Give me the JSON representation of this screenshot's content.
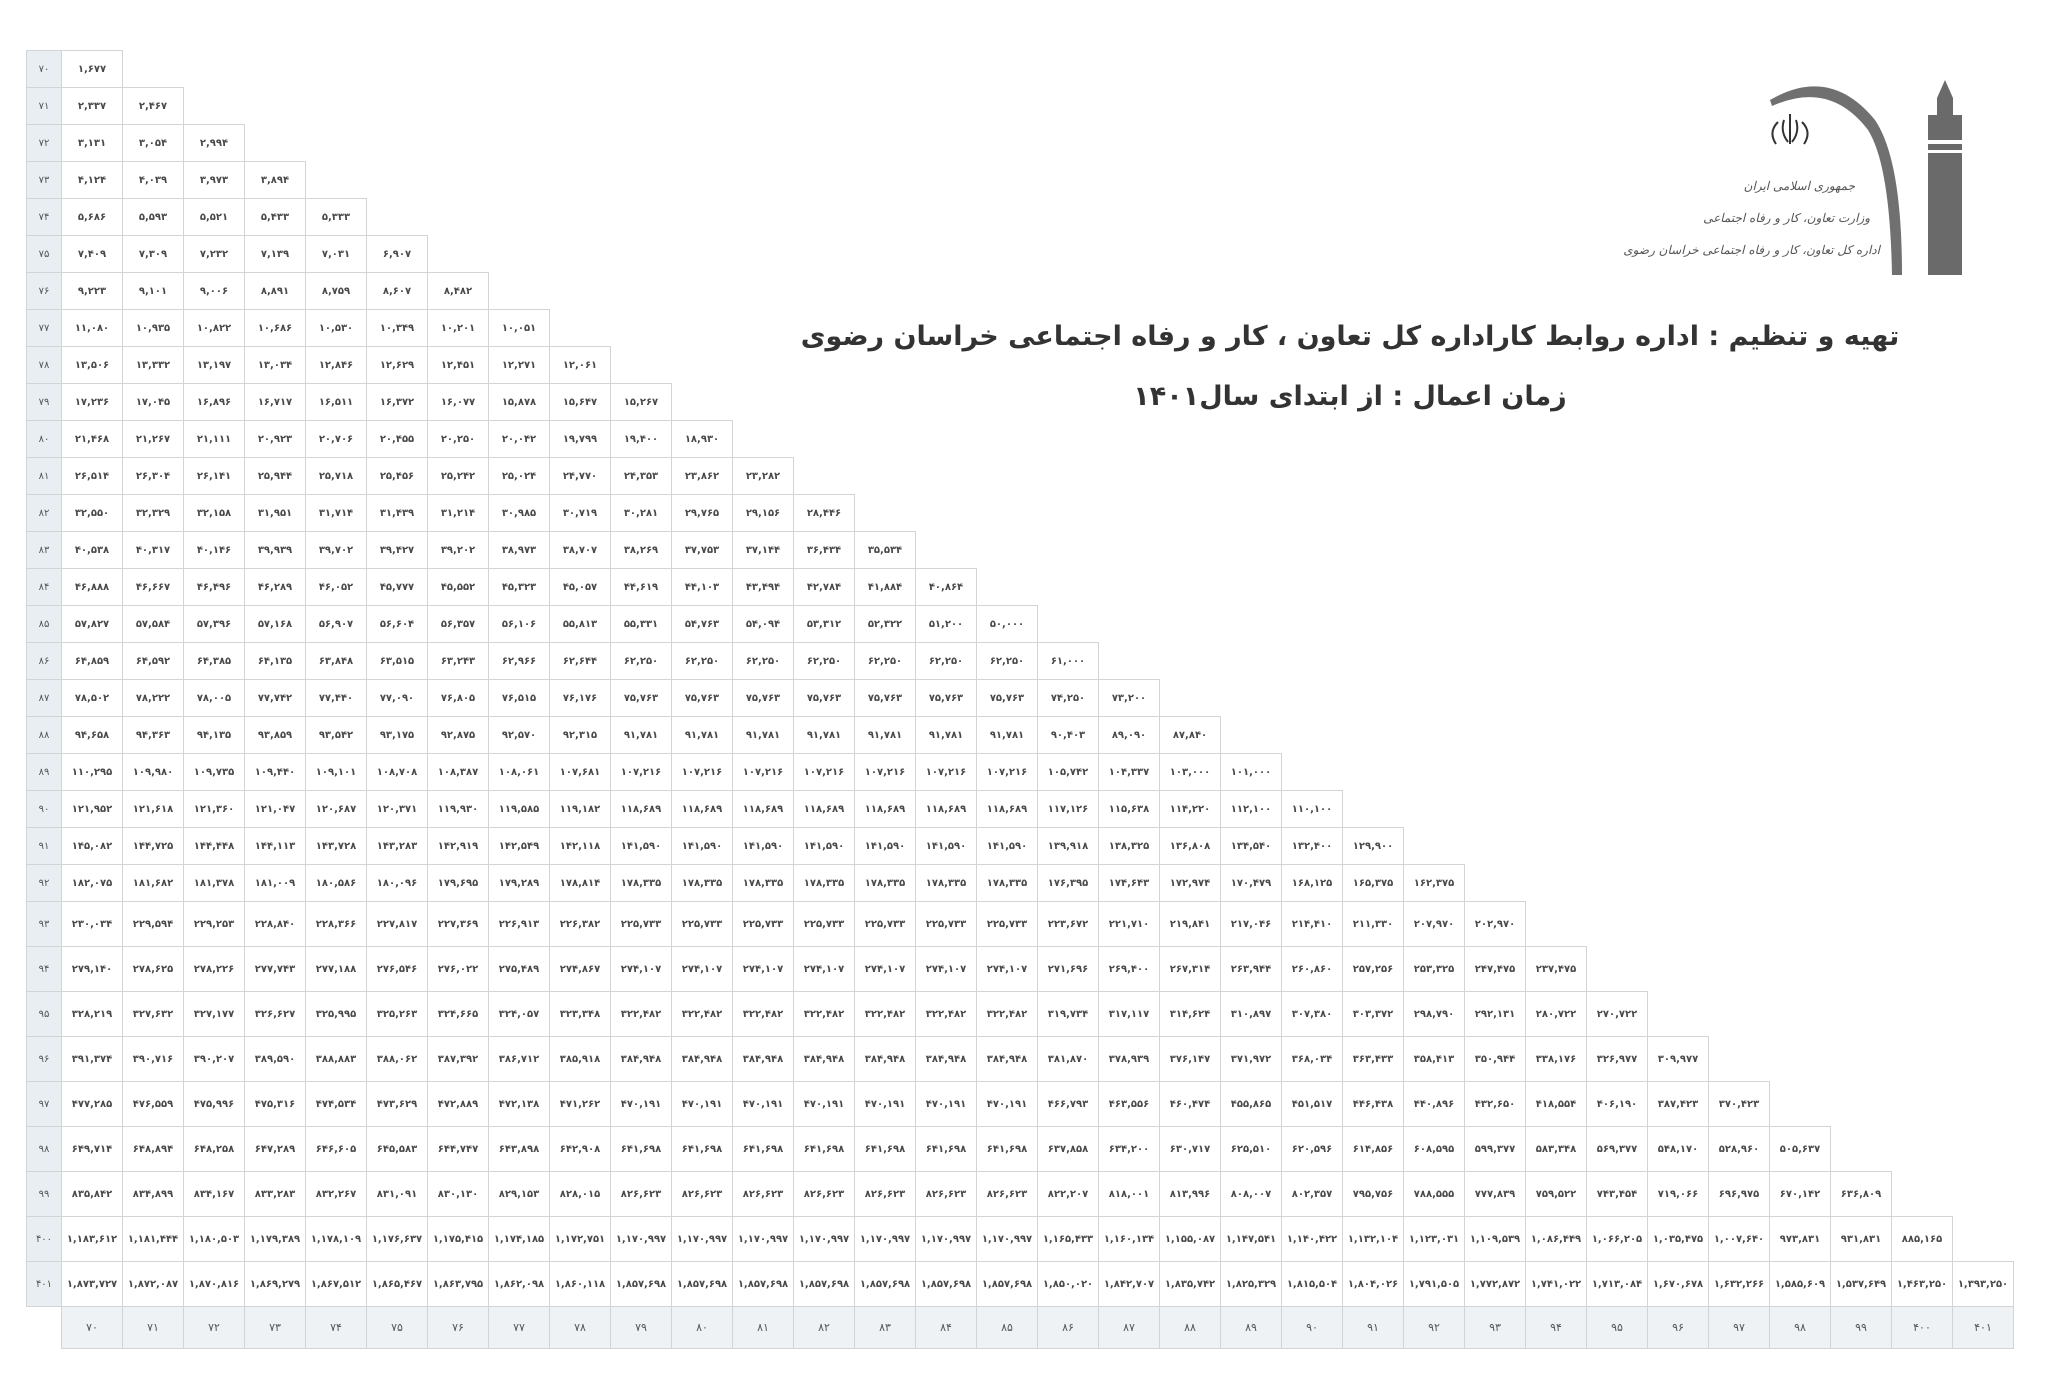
{
  "header": {
    "logo_lines": [
      "جمهوری اسلامی ایران",
      "وزارت تعاون، کار و رفاه اجتماعی",
      "اداره کل تعاون، کار و رفاه اجتماعی خراسان رضوی"
    ],
    "title": "تهیه و تنظیم : اداره روابط کاراداره  کل تعاون ، کار و رفاه اجتماعی  خراسان رضوی",
    "subtitle": "زمان اعمال : از ابتدای سال۱۴۰۱"
  },
  "table": {
    "columns": [
      "۷۰",
      "۷۱",
      "۷۲",
      "۷۳",
      "۷۴",
      "۷۵",
      "۷۶",
      "۷۷",
      "۷۸",
      "۷۹",
      "۸۰",
      "۸۱",
      "۸۲",
      "۸۳",
      "۸۴",
      "۸۵",
      "۸۶",
      "۸۷",
      "۸۸",
      "۸۹",
      "۹۰",
      "۹۱",
      "۹۲",
      "۹۳",
      "۹۴",
      "۹۵",
      "۹۶",
      "۹۷",
      "۹۸",
      "۹۹",
      "۴۰۰",
      "۴۰۱"
    ],
    "rows": [
      {
        "label": "۷۰",
        "values": [
          "۱,۶۷۷"
        ]
      },
      {
        "label": "۷۱",
        "values": [
          "۲,۳۳۷",
          "۲,۴۶۷"
        ]
      },
      {
        "label": "۷۲",
        "values": [
          "۳,۱۳۱",
          "۳,۰۵۴",
          "۲,۹۹۴"
        ]
      },
      {
        "label": "۷۳",
        "values": [
          "۴,۱۲۴",
          "۴,۰۳۹",
          "۳,۹۷۳",
          "۳,۸۹۴"
        ]
      },
      {
        "label": "۷۴",
        "values": [
          "۵,۶۸۶",
          "۵,۵۹۳",
          "۵,۵۲۱",
          "۵,۴۳۳",
          "۵,۳۳۳"
        ]
      },
      {
        "label": "۷۵",
        "values": [
          "۷,۴۰۹",
          "۷,۳۰۹",
          "۷,۲۳۲",
          "۷,۱۳۹",
          "۷,۰۳۱",
          "۶,۹۰۷"
        ]
      },
      {
        "label": "۷۶",
        "values": [
          "۹,۲۲۳",
          "۹,۱۰۱",
          "۹,۰۰۶",
          "۸,۸۹۱",
          "۸,۷۵۹",
          "۸,۶۰۷",
          "۸,۴۸۲"
        ]
      },
      {
        "label": "۷۷",
        "values": [
          "۱۱,۰۸۰",
          "۱۰,۹۳۵",
          "۱۰,۸۲۲",
          "۱۰,۶۸۶",
          "۱۰,۵۳۰",
          "۱۰,۳۴۹",
          "۱۰,۲۰۱",
          "۱۰,۰۵۱"
        ]
      },
      {
        "label": "۷۸",
        "values": [
          "۱۳,۵۰۶",
          "۱۳,۳۳۲",
          "۱۳,۱۹۷",
          "۱۳,۰۳۴",
          "۱۲,۸۴۶",
          "۱۲,۶۲۹",
          "۱۲,۴۵۱",
          "۱۲,۲۷۱",
          "۱۲,۰۶۱"
        ]
      },
      {
        "label": "۷۹",
        "values": [
          "۱۷,۲۳۶",
          "۱۷,۰۴۵",
          "۱۶,۸۹۶",
          "۱۶,۷۱۷",
          "۱۶,۵۱۱",
          "۱۶,۳۷۲",
          "۱۶,۰۷۷",
          "۱۵,۸۷۸",
          "۱۵,۶۴۷",
          "۱۵,۲۶۷"
        ]
      },
      {
        "label": "۸۰",
        "values": [
          "۲۱,۴۶۸",
          "۲۱,۲۶۷",
          "۲۱,۱۱۱",
          "۲۰,۹۲۳",
          "۲۰,۷۰۶",
          "۲۰,۴۵۵",
          "۲۰,۲۵۰",
          "۲۰,۰۴۲",
          "۱۹,۷۹۹",
          "۱۹,۴۰۰",
          "۱۸,۹۳۰"
        ]
      },
      {
        "label": "۸۱",
        "values": [
          "۲۶,۵۱۴",
          "۲۶,۳۰۴",
          "۲۶,۱۴۱",
          "۲۵,۹۴۴",
          "۲۵,۷۱۸",
          "۲۵,۴۵۶",
          "۲۵,۲۴۲",
          "۲۵,۰۲۴",
          "۲۴,۷۷۰",
          "۲۴,۳۵۳",
          "۲۳,۸۶۲",
          "۲۳,۲۸۲"
        ]
      },
      {
        "label": "۸۲",
        "values": [
          "۳۲,۵۵۰",
          "۳۲,۳۲۹",
          "۳۲,۱۵۸",
          "۳۱,۹۵۱",
          "۳۱,۷۱۴",
          "۳۱,۴۳۹",
          "۳۱,۲۱۴",
          "۳۰,۹۸۵",
          "۳۰,۷۱۹",
          "۳۰,۲۸۱",
          "۲۹,۷۶۵",
          "۲۹,۱۵۶",
          "۲۸,۴۴۶"
        ]
      },
      {
        "label": "۸۳",
        "values": [
          "۴۰,۵۳۸",
          "۴۰,۳۱۷",
          "۴۰,۱۴۶",
          "۳۹,۹۳۹",
          "۳۹,۷۰۲",
          "۳۹,۴۲۷",
          "۳۹,۲۰۲",
          "۳۸,۹۷۳",
          "۳۸,۷۰۷",
          "۳۸,۲۶۹",
          "۳۷,۷۵۳",
          "۳۷,۱۴۴",
          "۳۶,۴۳۴",
          "۳۵,۵۳۴"
        ]
      },
      {
        "label": "۸۴",
        "values": [
          "۴۶,۸۸۸",
          "۴۶,۶۶۷",
          "۴۶,۴۹۶",
          "۴۶,۲۸۹",
          "۴۶,۰۵۲",
          "۴۵,۷۷۷",
          "۴۵,۵۵۲",
          "۴۵,۳۲۳",
          "۴۵,۰۵۷",
          "۴۴,۶۱۹",
          "۴۴,۱۰۳",
          "۴۳,۴۹۴",
          "۴۲,۷۸۴",
          "۴۱,۸۸۴",
          "۴۰,۸۶۴"
        ]
      },
      {
        "label": "۸۵",
        "values": [
          "۵۷,۸۲۷",
          "۵۷,۵۸۴",
          "۵۷,۳۹۶",
          "۵۷,۱۶۸",
          "۵۶,۹۰۷",
          "۵۶,۶۰۴",
          "۵۶,۳۵۷",
          "۵۶,۱۰۶",
          "۵۵,۸۱۳",
          "۵۵,۳۳۱",
          "۵۴,۷۶۳",
          "۵۴,۰۹۴",
          "۵۳,۳۱۲",
          "۵۲,۳۲۲",
          "۵۱,۲۰۰",
          "۵۰,۰۰۰"
        ]
      },
      {
        "label": "۸۶",
        "values": [
          "۶۴,۸۵۹",
          "۶۴,۵۹۲",
          "۶۴,۳۸۵",
          "۶۴,۱۳۵",
          "۶۳,۸۴۸",
          "۶۳,۵۱۵",
          "۶۳,۲۴۳",
          "۶۲,۹۶۶",
          "۶۲,۶۴۴",
          "۶۲,۲۵۰",
          "۶۲,۲۵۰",
          "۶۲,۲۵۰",
          "۶۲,۲۵۰",
          "۶۲,۲۵۰",
          "۶۲,۲۵۰",
          "۶۲,۲۵۰",
          "۶۱,۰۰۰"
        ]
      },
      {
        "label": "۸۷",
        "values": [
          "۷۸,۵۰۲",
          "۷۸,۲۲۲",
          "۷۸,۰۰۵",
          "۷۷,۷۴۲",
          "۷۷,۴۴۰",
          "۷۷,۰۹۰",
          "۷۶,۸۰۵",
          "۷۶,۵۱۵",
          "۷۶,۱۷۶",
          "۷۵,۷۶۳",
          "۷۵,۷۶۳",
          "۷۵,۷۶۳",
          "۷۵,۷۶۳",
          "۷۵,۷۶۳",
          "۷۵,۷۶۳",
          "۷۵,۷۶۳",
          "۷۴,۲۵۰",
          "۷۳,۲۰۰"
        ]
      },
      {
        "label": "۸۸",
        "values": [
          "۹۴,۶۵۸",
          "۹۴,۳۶۳",
          "۹۴,۱۳۵",
          "۹۳,۸۵۹",
          "۹۳,۵۴۲",
          "۹۳,۱۷۵",
          "۹۲,۸۷۵",
          "۹۲,۵۷۰",
          "۹۲,۳۱۵",
          "۹۱,۷۸۱",
          "۹۱,۷۸۱",
          "۹۱,۷۸۱",
          "۹۱,۷۸۱",
          "۹۱,۷۸۱",
          "۹۱,۷۸۱",
          "۹۱,۷۸۱",
          "۹۰,۴۰۳",
          "۸۹,۰۹۰",
          "۸۷,۸۴۰"
        ]
      },
      {
        "label": "۸۹",
        "values": [
          "۱۱۰,۲۹۵",
          "۱۰۹,۹۸۰",
          "۱۰۹,۷۳۵",
          "۱۰۹,۴۴۰",
          "۱۰۹,۱۰۱",
          "۱۰۸,۷۰۸",
          "۱۰۸,۳۸۷",
          "۱۰۸,۰۶۱",
          "۱۰۷,۶۸۱",
          "۱۰۷,۲۱۶",
          "۱۰۷,۲۱۶",
          "۱۰۷,۲۱۶",
          "۱۰۷,۲۱۶",
          "۱۰۷,۲۱۶",
          "۱۰۷,۲۱۶",
          "۱۰۷,۲۱۶",
          "۱۰۵,۷۴۲",
          "۱۰۴,۳۳۷",
          "۱۰۳,۰۰۰",
          "۱۰۱,۰۰۰"
        ]
      },
      {
        "label": "۹۰",
        "values": [
          "۱۲۱,۹۵۲",
          "۱۲۱,۶۱۸",
          "۱۲۱,۳۶۰",
          "۱۲۱,۰۴۷",
          "۱۲۰,۶۸۷",
          "۱۲۰,۳۷۱",
          "۱۱۹,۹۳۰",
          "۱۱۹,۵۸۵",
          "۱۱۹,۱۸۲",
          "۱۱۸,۶۸۹",
          "۱۱۸,۶۸۹",
          "۱۱۸,۶۸۹",
          "۱۱۸,۶۸۹",
          "۱۱۸,۶۸۹",
          "۱۱۸,۶۸۹",
          "۱۱۸,۶۸۹",
          "۱۱۷,۱۲۶",
          "۱۱۵,۶۳۸",
          "۱۱۴,۲۲۰",
          "۱۱۲,۱۰۰",
          "۱۱۰,۱۰۰"
        ]
      },
      {
        "label": "۹۱",
        "values": [
          "۱۴۵,۰۸۲",
          "۱۴۴,۷۲۵",
          "۱۴۴,۴۴۸",
          "۱۴۴,۱۱۳",
          "۱۴۳,۷۲۸",
          "۱۴۳,۲۸۳",
          "۱۴۲,۹۱۹",
          "۱۴۲,۵۴۹",
          "۱۴۲,۱۱۸",
          "۱۴۱,۵۹۰",
          "۱۴۱,۵۹۰",
          "۱۴۱,۵۹۰",
          "۱۴۱,۵۹۰",
          "۱۴۱,۵۹۰",
          "۱۴۱,۵۹۰",
          "۱۴۱,۵۹۰",
          "۱۳۹,۹۱۸",
          "۱۳۸,۳۲۵",
          "۱۳۶,۸۰۸",
          "۱۳۴,۵۴۰",
          "۱۳۲,۴۰۰",
          "۱۲۹,۹۰۰"
        ]
      },
      {
        "label": "۹۲",
        "values": [
          "۱۸۲,۰۷۵",
          "۱۸۱,۶۸۲",
          "۱۸۱,۳۷۸",
          "۱۸۱,۰۰۹",
          "۱۸۰,۵۸۶",
          "۱۸۰,۰۹۶",
          "۱۷۹,۶۹۵",
          "۱۷۹,۲۸۹",
          "۱۷۸,۸۱۴",
          "۱۷۸,۳۳۵",
          "۱۷۸,۳۳۵",
          "۱۷۸,۳۳۵",
          "۱۷۸,۳۳۵",
          "۱۷۸,۳۳۵",
          "۱۷۸,۳۳۵",
          "۱۷۸,۳۳۵",
          "۱۷۶,۳۹۵",
          "۱۷۴,۶۴۳",
          "۱۷۲,۹۷۴",
          "۱۷۰,۴۷۹",
          "۱۶۸,۱۲۵",
          "۱۶۵,۳۷۵",
          "۱۶۲,۳۷۵"
        ]
      },
      {
        "label": "۹۳",
        "values": [
          "۲۳۰,۰۳۴",
          "۲۲۹,۵۹۴",
          "۲۲۹,۲۵۳",
          "۲۲۸,۸۴۰",
          "۲۲۸,۳۶۶",
          "۲۲۷,۸۱۷",
          "۲۲۷,۳۶۹",
          "۲۲۶,۹۱۳",
          "۲۲۶,۳۸۲",
          "۲۲۵,۷۳۳",
          "۲۲۵,۷۳۳",
          "۲۲۵,۷۳۳",
          "۲۲۵,۷۳۳",
          "۲۲۵,۷۳۳",
          "۲۲۵,۷۳۳",
          "۲۲۵,۷۳۳",
          "۲۲۳,۶۷۲",
          "۲۲۱,۷۱۰",
          "۲۱۹,۸۴۱",
          "۲۱۷,۰۴۶",
          "۲۱۴,۴۱۰",
          "۲۱۱,۳۳۰",
          "۲۰۷,۹۷۰",
          "۲۰۲,۹۷۰"
        ]
      },
      {
        "label": "۹۴",
        "values": [
          "۲۷۹,۱۴۰",
          "۲۷۸,۶۲۵",
          "۲۷۸,۲۲۶",
          "۲۷۷,۷۴۳",
          "۲۷۷,۱۸۸",
          "۲۷۶,۵۴۶",
          "۲۷۶,۰۲۲",
          "۲۷۵,۴۸۹",
          "۲۷۴,۸۶۷",
          "۲۷۴,۱۰۷",
          "۲۷۴,۱۰۷",
          "۲۷۴,۱۰۷",
          "۲۷۴,۱۰۷",
          "۲۷۴,۱۰۷",
          "۲۷۴,۱۰۷",
          "۲۷۴,۱۰۷",
          "۲۷۱,۶۹۶",
          "۲۶۹,۴۰۰",
          "۲۶۷,۳۱۴",
          "۲۶۳,۹۴۴",
          "۲۶۰,۸۶۰",
          "۲۵۷,۲۵۶",
          "۲۵۳,۳۲۵",
          "۲۴۷,۴۷۵",
          "۲۳۷,۴۷۵"
        ]
      },
      {
        "label": "۹۵",
        "values": [
          "۳۲۸,۲۱۹",
          "۳۲۷,۶۳۲",
          "۳۲۷,۱۷۷",
          "۳۲۶,۶۲۷",
          "۳۲۵,۹۹۵",
          "۳۲۵,۲۶۳",
          "۳۲۴,۶۶۵",
          "۳۲۴,۰۵۷",
          "۳۲۳,۳۴۸",
          "۳۲۲,۴۸۲",
          "۳۲۲,۴۸۲",
          "۳۲۲,۴۸۲",
          "۳۲۲,۴۸۲",
          "۳۲۲,۴۸۲",
          "۳۲۲,۴۸۲",
          "۳۲۲,۴۸۲",
          "۳۱۹,۷۳۴",
          "۳۱۷,۱۱۷",
          "۳۱۴,۶۲۴",
          "۳۱۰,۸۹۷",
          "۳۰۷,۳۸۰",
          "۳۰۳,۳۷۲",
          "۲۹۸,۷۹۰",
          "۲۹۲,۱۳۱",
          "۲۸۰,۷۲۲",
          "۲۷۰,۷۲۲"
        ]
      },
      {
        "label": "۹۶",
        "values": [
          "۳۹۱,۳۷۴",
          "۳۹۰,۷۱۶",
          "۳۹۰,۲۰۷",
          "۳۸۹,۵۹۰",
          "۳۸۸,۸۸۳",
          "۳۸۸,۰۶۲",
          "۳۸۷,۳۹۲",
          "۳۸۶,۷۱۲",
          "۳۸۵,۹۱۸",
          "۳۸۴,۹۴۸",
          "۳۸۴,۹۴۸",
          "۳۸۴,۹۴۸",
          "۳۸۴,۹۴۸",
          "۳۸۴,۹۴۸",
          "۳۸۴,۹۴۸",
          "۳۸۴,۹۴۸",
          "۳۸۱,۸۷۰",
          "۳۷۸,۹۳۹",
          "۳۷۶,۱۴۷",
          "۳۷۱,۹۷۲",
          "۳۶۸,۰۳۴",
          "۳۶۳,۴۳۳",
          "۳۵۸,۴۱۳",
          "۳۵۰,۹۴۴",
          "۳۳۸,۱۷۶",
          "۳۲۶,۹۷۷",
          "۳۰۹,۹۷۷"
        ]
      },
      {
        "label": "۹۷",
        "values": [
          "۴۷۷,۲۸۵",
          "۴۷۶,۵۵۹",
          "۴۷۵,۹۹۶",
          "۴۷۵,۳۱۶",
          "۴۷۴,۵۳۴",
          "۴۷۳,۶۲۹",
          "۴۷۲,۸۸۹",
          "۴۷۲,۱۳۸",
          "۴۷۱,۲۶۲",
          "۴۷۰,۱۹۱",
          "۴۷۰,۱۹۱",
          "۴۷۰,۱۹۱",
          "۴۷۰,۱۹۱",
          "۴۷۰,۱۹۱",
          "۴۷۰,۱۹۱",
          "۴۷۰,۱۹۱",
          "۴۶۶,۷۹۳",
          "۴۶۳,۵۵۶",
          "۴۶۰,۴۷۴",
          "۴۵۵,۸۶۵",
          "۴۵۱,۵۱۷",
          "۴۴۶,۴۳۸",
          "۴۴۰,۸۹۶",
          "۴۳۲,۶۵۰",
          "۴۱۸,۵۵۴",
          "۴۰۶,۱۹۰",
          "۳۸۷,۴۲۳",
          "۳۷۰,۴۲۳"
        ]
      },
      {
        "label": "۹۸",
        "values": [
          "۶۴۹,۷۱۴",
          "۶۴۸,۸۹۴",
          "۶۴۸,۲۵۸",
          "۶۴۷,۲۸۹",
          "۶۴۶,۶۰۵",
          "۶۴۵,۵۸۳",
          "۶۴۴,۷۴۷",
          "۶۴۳,۸۹۸",
          "۶۴۲,۹۰۸",
          "۶۴۱,۶۹۸",
          "۶۴۱,۶۹۸",
          "۶۴۱,۶۹۸",
          "۶۴۱,۶۹۸",
          "۶۴۱,۶۹۸",
          "۶۴۱,۶۹۸",
          "۶۴۱,۶۹۸",
          "۶۳۷,۸۵۸",
          "۶۳۴,۲۰۰",
          "۶۳۰,۷۱۷",
          "۶۲۵,۵۱۰",
          "۶۲۰,۵۹۶",
          "۶۱۴,۸۵۶",
          "۶۰۸,۵۹۵",
          "۵۹۹,۳۷۷",
          "۵۸۳,۳۴۸",
          "۵۶۹,۳۷۷",
          "۵۴۸,۱۷۰",
          "۵۲۸,۹۶۰",
          "۵۰۵,۶۳۷"
        ]
      },
      {
        "label": "۹۹",
        "values": [
          "۸۳۵,۸۴۲",
          "۸۳۴,۸۹۹",
          "۸۳۴,۱۶۷",
          "۸۳۳,۲۸۳",
          "۸۳۲,۲۶۷",
          "۸۳۱,۰۹۱",
          "۸۳۰,۱۳۰",
          "۸۲۹,۱۵۳",
          "۸۲۸,۰۱۵",
          "۸۲۶,۶۲۳",
          "۸۲۶,۶۲۳",
          "۸۲۶,۶۲۳",
          "۸۲۶,۶۲۳",
          "۸۲۶,۶۲۳",
          "۸۲۶,۶۲۳",
          "۸۲۶,۶۲۳",
          "۸۲۲,۲۰۷",
          "۸۱۸,۰۰۱",
          "۸۱۳,۹۹۶",
          "۸۰۸,۰۰۷",
          "۸۰۲,۳۵۷",
          "۷۹۵,۷۵۶",
          "۷۸۸,۵۵۵",
          "۷۷۷,۸۳۹",
          "۷۵۹,۵۲۲",
          "۷۴۳,۴۵۴",
          "۷۱۹,۰۶۶",
          "۶۹۶,۹۷۵",
          "۶۷۰,۱۴۲",
          "۶۳۶,۸۰۹"
        ]
      },
      {
        "label": "۴۰۰",
        "values": [
          "۱,۱۸۳,۶۱۲",
          "۱,۱۸۱,۴۴۴",
          "۱,۱۸۰,۵۰۳",
          "۱,۱۷۹,۳۸۹",
          "۱,۱۷۸,۱۰۹",
          "۱,۱۷۶,۶۳۷",
          "۱,۱۷۵,۴۱۵",
          "۱,۱۷۴,۱۸۵",
          "۱,۱۷۲,۷۵۱",
          "۱,۱۷۰,۹۹۷",
          "۱,۱۷۰,۹۹۷",
          "۱,۱۷۰,۹۹۷",
          "۱,۱۷۰,۹۹۷",
          "۱,۱۷۰,۹۹۷",
          "۱,۱۷۰,۹۹۷",
          "۱,۱۷۰,۹۹۷",
          "۱,۱۶۵,۴۳۳",
          "۱,۱۶۰,۱۳۴",
          "۱,۱۵۵,۰۸۷",
          "۱,۱۴۷,۵۴۱",
          "۱,۱۴۰,۴۲۲",
          "۱,۱۳۲,۱۰۴",
          "۱,۱۲۳,۰۳۱",
          "۱,۱۰۹,۵۳۹",
          "۱,۰۸۶,۴۴۹",
          "۱,۰۶۶,۲۰۵",
          "۱,۰۳۵,۴۷۵",
          "۱,۰۰۷,۶۴۰",
          "۹۷۳,۸۳۱",
          "۹۳۱,۸۳۱",
          "۸۸۵,۱۶۵"
        ]
      },
      {
        "label": "۴۰۱",
        "values": [
          "۱,۸۷۳,۷۲۷",
          "۱,۸۷۲,۰۸۷",
          "۱,۸۷۰,۸۱۶",
          "۱,۸۶۹,۲۷۹",
          "۱,۸۶۷,۵۱۲",
          "۱,۸۶۵,۴۶۷",
          "۱,۸۶۳,۷۹۵",
          "۱,۸۶۲,۰۹۸",
          "۱,۸۶۰,۱۱۸",
          "۱,۸۵۷,۶۹۸",
          "۱,۸۵۷,۶۹۸",
          "۱,۸۵۷,۶۹۸",
          "۱,۸۵۷,۶۹۸",
          "۱,۸۵۷,۶۹۸",
          "۱,۸۵۷,۶۹۸",
          "۱,۸۵۷,۶۹۸",
          "۱,۸۵۰,۰۲۰",
          "۱,۸۴۲,۷۰۷",
          "۱,۸۳۵,۷۴۲",
          "۱,۸۲۵,۳۲۹",
          "۱,۸۱۵,۵۰۴",
          "۱,۸۰۴,۰۲۶",
          "۱,۷۹۱,۵۰۵",
          "۱,۷۷۲,۸۷۲",
          "۱,۷۴۱,۰۲۲",
          "۱,۷۱۳,۰۸۴",
          "۱,۶۷۰,۶۷۸",
          "۱,۶۳۲,۲۶۶",
          "۱,۵۸۵,۶۰۹",
          "۱,۵۳۷,۶۴۹",
          "۱,۴۶۳,۲۵۰",
          "۱,۳۹۳,۲۵۰"
        ]
      }
    ]
  },
  "colors": {
    "text": "#4a4a4a",
    "label_bg": "#e9eef3",
    "border": "#d2d5d8",
    "logo": "#707070"
  }
}
